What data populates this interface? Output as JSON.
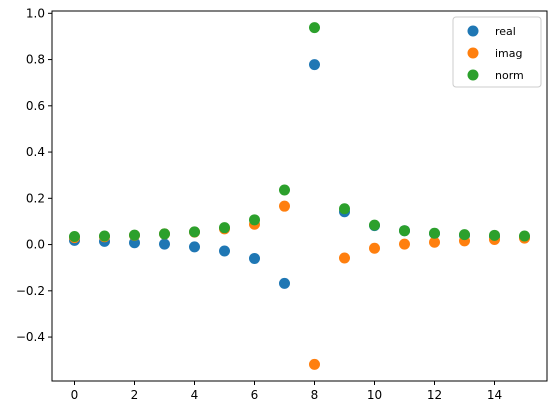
{
  "chart_data": {
    "type": "scatter",
    "x": [
      0,
      1,
      2,
      3,
      4,
      5,
      6,
      7,
      8,
      9,
      10,
      11,
      12,
      13,
      14,
      15
    ],
    "series": [
      {
        "name": "real",
        "color": "#1f77b4",
        "values": [
          0.018,
          0.014,
          0.008,
          0.002,
          -0.01,
          -0.028,
          -0.06,
          -0.168,
          0.778,
          0.142,
          0.082,
          0.06,
          0.048,
          0.04,
          0.034,
          0.03
        ]
      },
      {
        "name": "imag",
        "color": "#ff7f0e",
        "values": [
          0.03,
          0.034,
          0.04,
          0.046,
          0.054,
          0.068,
          0.088,
          0.166,
          -0.518,
          -0.058,
          -0.016,
          0.002,
          0.01,
          0.016,
          0.022,
          0.028
        ]
      },
      {
        "name": "norm",
        "color": "#2ca02c",
        "values": [
          0.035,
          0.037,
          0.041,
          0.046,
          0.055,
          0.073,
          0.107,
          0.236,
          0.938,
          0.155,
          0.084,
          0.06,
          0.049,
          0.043,
          0.04,
          0.037
        ]
      }
    ],
    "xlim": [
      -0.75,
      15.75
    ],
    "ylim": [
      -0.59,
      1.01
    ],
    "xticks": [
      "0",
      "2",
      "4",
      "6",
      "8",
      "10",
      "12",
      "14"
    ],
    "xtick_values": [
      0,
      2,
      4,
      6,
      8,
      10,
      12,
      14
    ],
    "yticks": [
      "−0.4",
      "−0.2",
      "0.0",
      "0.2",
      "0.4",
      "0.6",
      "0.8",
      "1.0"
    ],
    "ytick_values": [
      -0.4,
      -0.2,
      0.0,
      0.2,
      0.4,
      0.6,
      0.8,
      1.0
    ],
    "legend_position": "upper right",
    "grid": false,
    "title": "",
    "xlabel": "",
    "ylabel": ""
  }
}
